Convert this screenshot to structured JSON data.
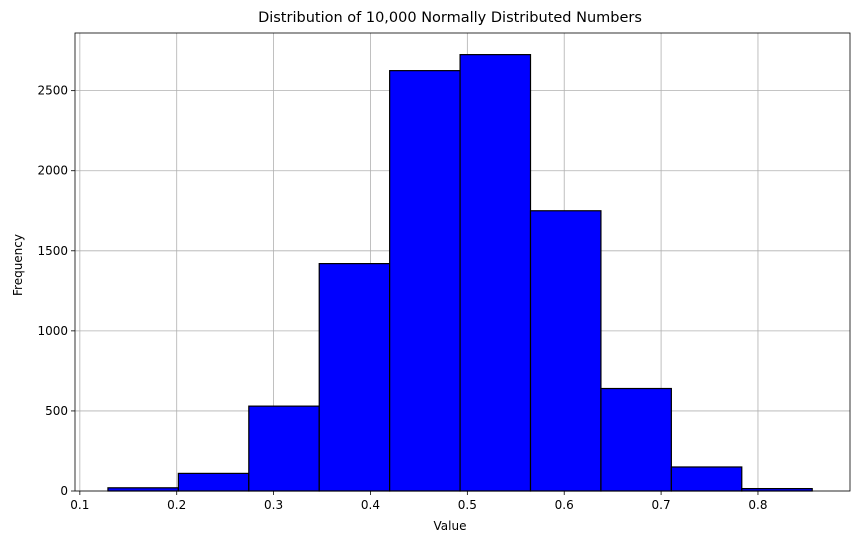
{
  "chart_data": {
    "type": "bar",
    "subtype": "histogram",
    "title": "Distribution of 10,000 Normally Distributed Numbers",
    "xlabel": "Value",
    "ylabel": "Frequency",
    "xlim": [
      0.095,
      0.895
    ],
    "ylim": [
      0,
      2860
    ],
    "xticks": [
      0.1,
      0.2,
      0.3,
      0.4,
      0.5,
      0.6,
      0.7,
      0.8
    ],
    "yticks": [
      0,
      500,
      1000,
      1500,
      2000,
      2500
    ],
    "bin_edges": [
      0.129,
      0.2017,
      0.2744,
      0.3471,
      0.4198,
      0.4925,
      0.5652,
      0.6379,
      0.7106,
      0.7833,
      0.856
    ],
    "values": [
      20,
      110,
      530,
      1420,
      2625,
      2725,
      1750,
      640,
      150,
      15
    ],
    "bar_color": "#0000ff",
    "edge_color": "#000000",
    "grid": true
  }
}
